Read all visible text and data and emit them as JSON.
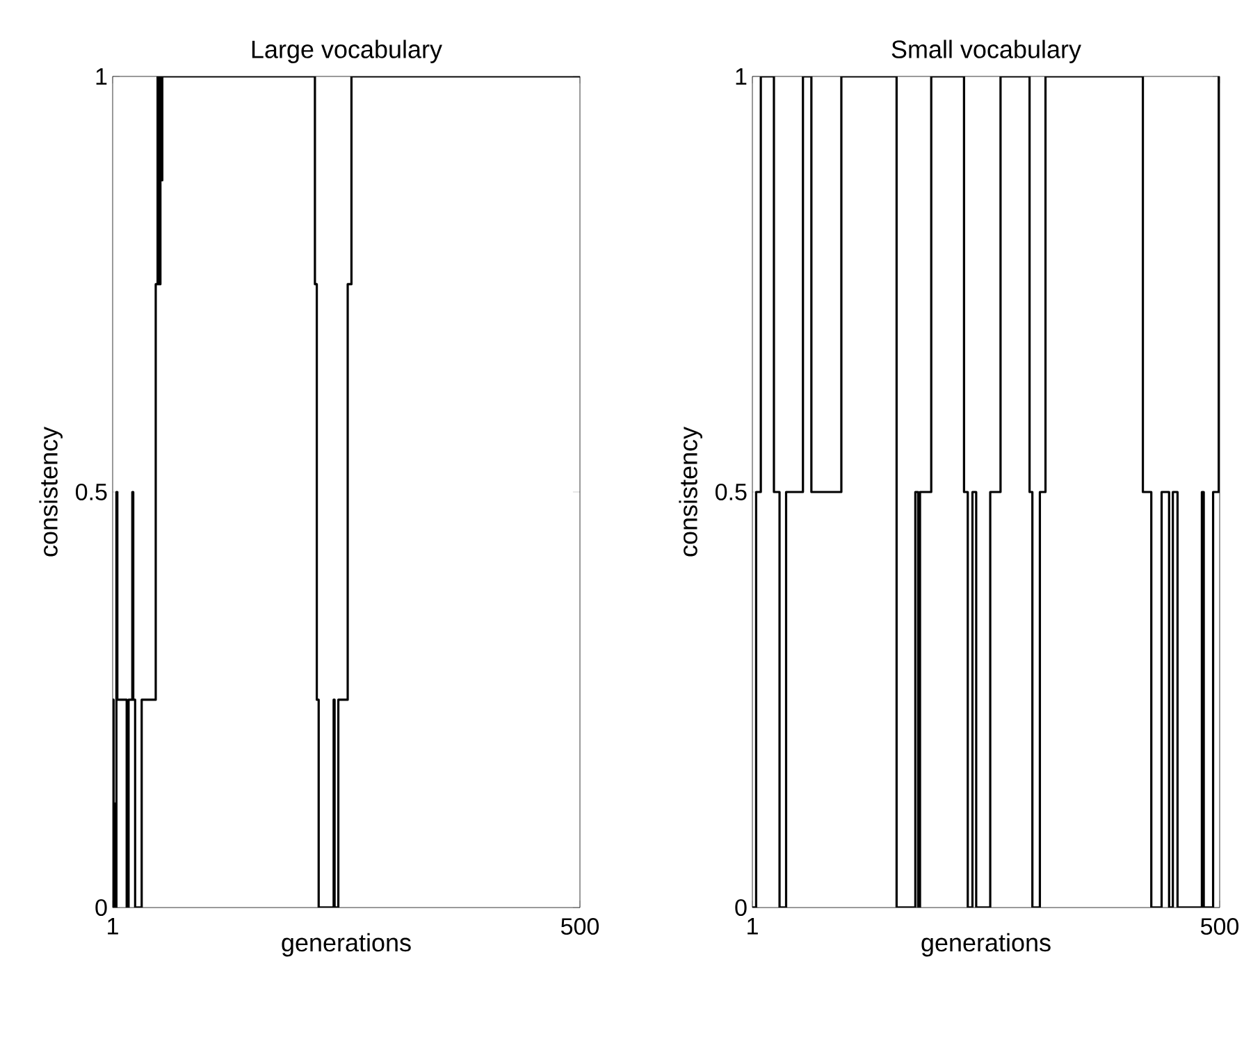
{
  "chart_data": [
    {
      "type": "step",
      "title": "Large vocabulary",
      "xlabel": "generations",
      "ylabel": "consistency",
      "xlim": [
        1,
        500
      ],
      "xticks": [
        1,
        500
      ],
      "ylim": [
        0,
        1
      ],
      "yticks": [
        0,
        0.5,
        1
      ],
      "series": [
        {
          "color": "#000000",
          "x": [
            1,
            2,
            3,
            4,
            5,
            6,
            16,
            18,
            22,
            23,
            25,
            32,
            47,
            49,
            50,
            52,
            53,
            54,
            217,
            219,
            221,
            237,
            238,
            242,
            252,
            256,
            500
          ],
          "values": [
            0.25,
            0,
            0.125,
            0,
            0.5,
            0.25,
            0,
            0.25,
            0.5,
            0.25,
            0,
            0.25,
            0.75,
            1,
            0.75,
            1,
            0.875,
            1,
            0.75,
            0.25,
            0,
            0.25,
            0,
            0.25,
            0.75,
            1,
            1
          ]
        }
      ]
    },
    {
      "type": "step",
      "title": "Small vocabulary",
      "xlabel": "generations",
      "ylabel": "consistency",
      "xlim": [
        1,
        500
      ],
      "xticks": [
        1,
        500
      ],
      "ylim": [
        0,
        1
      ],
      "yticks": [
        0,
        0.5,
        1
      ],
      "series": [
        {
          "color": "#000000",
          "x": [
            1,
            5,
            10,
            24,
            30,
            37,
            55,
            64,
            96,
            155,
            175,
            178,
            180,
            192,
            227,
            231,
            236,
            240,
            255,
            266,
            297,
            300,
            308,
            314,
            418,
            427,
            438,
            446,
            450,
            455,
            481,
            483,
            493,
            499,
            500
          ],
          "values": [
            0,
            0.5,
            1,
            0.5,
            0,
            0.5,
            1,
            0.5,
            1,
            0,
            0.5,
            0,
            0.5,
            1,
            0.5,
            0,
            0.5,
            0,
            0.5,
            1,
            0.5,
            0,
            0.5,
            1,
            0.5,
            0,
            0.5,
            0,
            0.5,
            0,
            0.5,
            0,
            0.5,
            1,
            1
          ]
        }
      ]
    }
  ]
}
